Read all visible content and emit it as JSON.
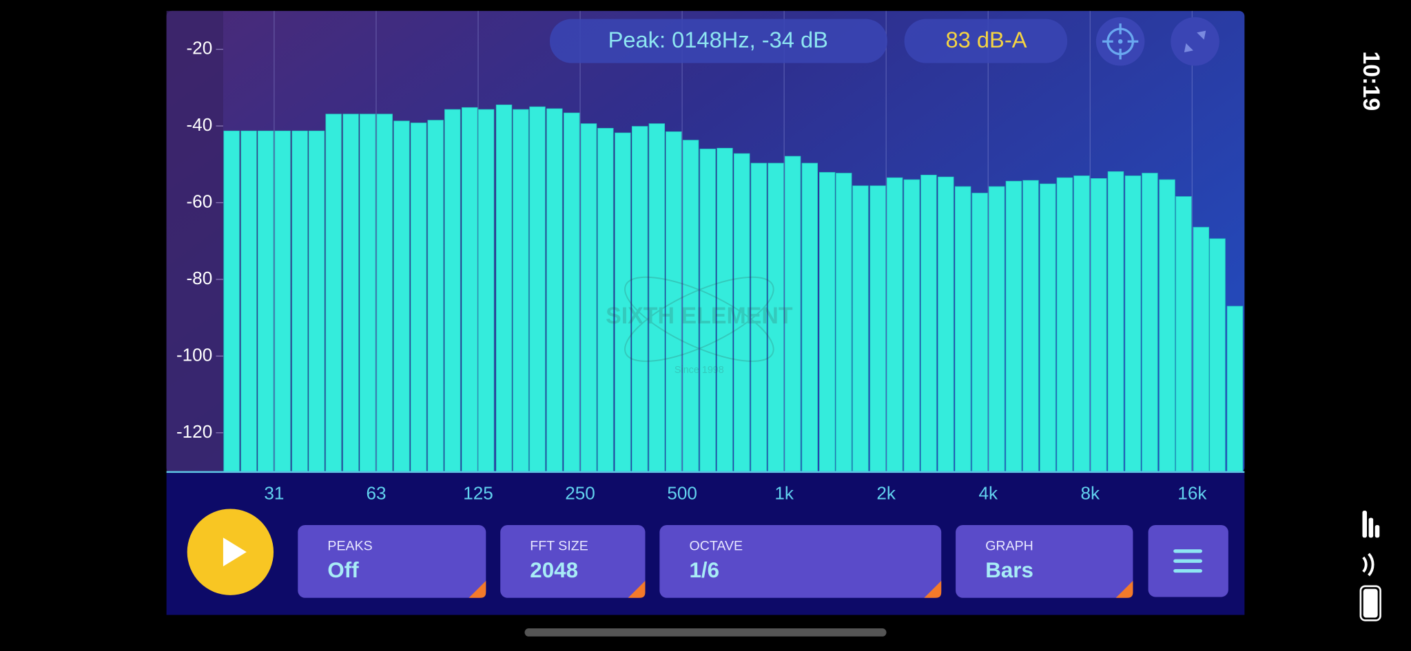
{
  "status_bar": {
    "time": "10:19"
  },
  "readouts": {
    "peak": "Peak: 0148Hz, -34 dB",
    "level": "83 dB-A"
  },
  "watermark": {
    "name": "SIXTH ELEMENT",
    "tagline": "Since 1998"
  },
  "controls": [
    {
      "label": "PEAKS",
      "value": "Off"
    },
    {
      "label": "FFT SIZE",
      "value": "2048"
    },
    {
      "label": "OCTAVE",
      "value": "1/6"
    },
    {
      "label": "GRAPH",
      "value": "Bars"
    }
  ],
  "chart_data": {
    "type": "bar",
    "x_scale": "log",
    "color": "#34ecdc",
    "x": [
      23.4,
      26.3,
      29.5,
      33.1,
      37.2,
      41.7,
      46.8,
      52.6,
      59.0,
      66.2,
      74.3,
      83.4,
      93.6,
      105,
      118,
      132,
      149,
      167,
      187,
      210,
      236,
      265,
      297,
      334,
      375,
      421,
      472,
      530,
      595,
      668,
      750,
      842,
      945,
      1060,
      1190,
      1340,
      1500,
      1680,
      1890,
      2120,
      2380,
      2670,
      3000,
      3370,
      3780,
      4240,
      4760,
      5340,
      6000,
      6730,
      7550,
      8480,
      9520,
      10700,
      12000,
      13500,
      15100,
      17000,
      19000,
      21400
    ],
    "values": [
      -41.3,
      -41.3,
      -41.3,
      -41.3,
      -41.3,
      -41.3,
      -36.9,
      -36.9,
      -36.9,
      -36.9,
      -38.7,
      -39.2,
      -38.5,
      -35.7,
      -35.2,
      -35.7,
      -34.5,
      -35.7,
      -35.0,
      -35.5,
      -36.6,
      -39.4,
      -40.6,
      -41.8,
      -40.1,
      -39.4,
      -41.5,
      -43.7,
      -46.0,
      -45.8,
      -47.2,
      -49.7,
      -49.7,
      -47.9,
      -49.7,
      -52.1,
      -52.3,
      -55.6,
      -55.6,
      -53.5,
      -54.0,
      -52.8,
      -53.3,
      -55.8,
      -57.5,
      -55.8,
      -54.4,
      -54.2,
      -55.1,
      -53.5,
      -53.0,
      -53.7,
      -51.9,
      -53.0,
      -52.3,
      -54.0,
      -58.4,
      -66.4,
      -69.4,
      -87.0
    ],
    "xlim": [
      22.1,
      22700
    ],
    "xticks": [
      {
        "value": 31.25,
        "label": "31"
      },
      {
        "value": 62.5,
        "label": "63"
      },
      125,
      250,
      500,
      {
        "value": 1000,
        "label": "1k"
      },
      {
        "value": 2000,
        "label": "2k"
      },
      {
        "value": 4000,
        "label": "4k"
      },
      {
        "value": 8000,
        "label": "8k"
      },
      {
        "value": 16000,
        "label": "16k"
      }
    ],
    "ylim": [
      -130,
      -10
    ],
    "yticks": [
      -20,
      -40,
      -60,
      -80,
      -100,
      -120
    ]
  }
}
